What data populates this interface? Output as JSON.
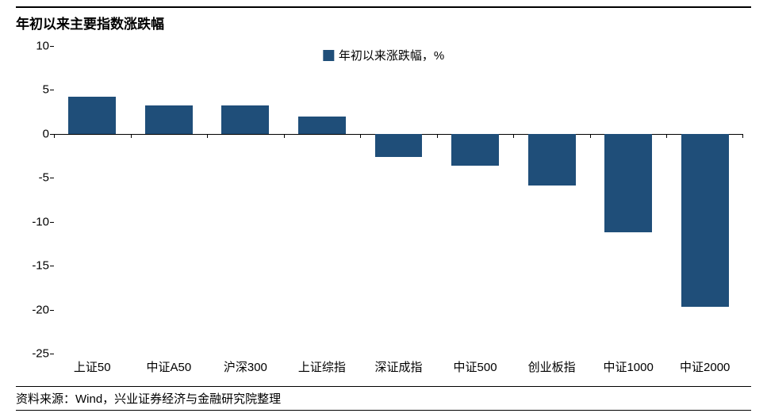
{
  "chart": {
    "type": "bar",
    "title": "年初以来主要指数涨跌幅",
    "legend_label": "年初以来涨跌幅，%",
    "source": "资料来源：Wind，兴业证券经济与金融研究院整理",
    "categories": [
      "上证50",
      "中证A50",
      "沪深300",
      "上证综指",
      "深证成指",
      "中证500",
      "创业板指",
      "中证1000",
      "中证2000"
    ],
    "values": [
      4.2,
      3.2,
      3.2,
      2.0,
      -2.6,
      -3.6,
      -5.9,
      -11.2,
      -19.7
    ],
    "bar_color": "#1f4e79",
    "background_color": "#ffffff",
    "axis_color": "#000000",
    "text_color": "#000000",
    "ylim": [
      -25,
      10
    ],
    "ytick_step": 5,
    "yticks": [
      10,
      5,
      0,
      -5,
      -10,
      -15,
      -20,
      -25
    ],
    "bar_width_ratio": 0.62,
    "title_fontsize": 17,
    "label_fontsize": 15,
    "legend_fontsize": 15,
    "source_fontsize": 15
  }
}
